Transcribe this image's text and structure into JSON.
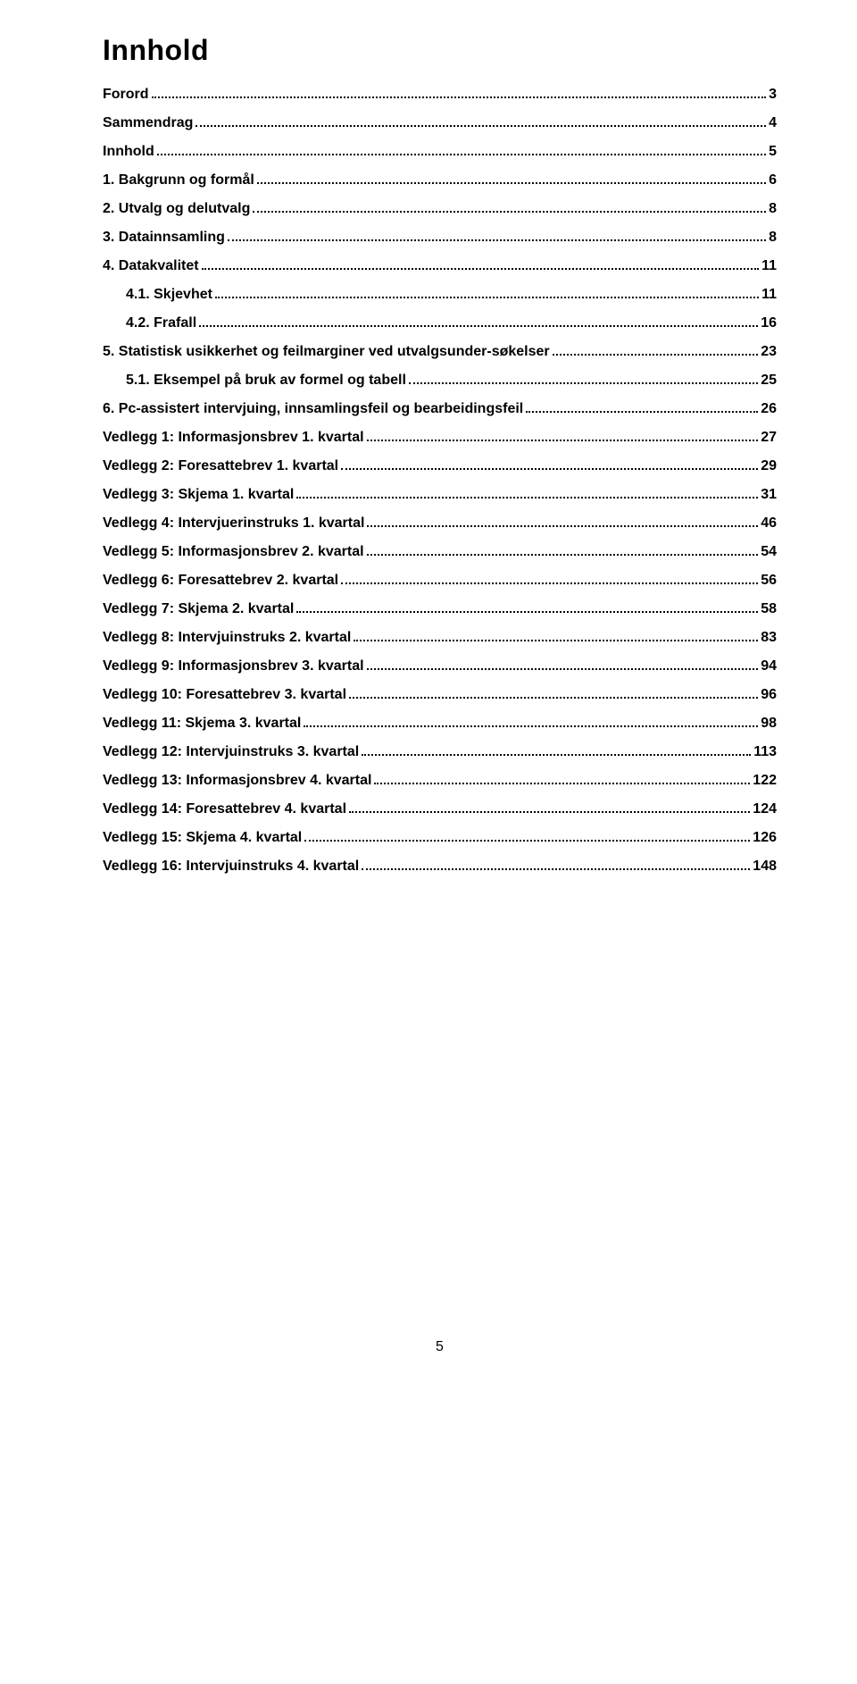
{
  "title": "Innhold",
  "page_number": "5",
  "toc": [
    {
      "label": "Forord",
      "page": "3",
      "sub": false
    },
    {
      "label": "Sammendrag",
      "page": "4",
      "sub": false
    },
    {
      "label": "Innhold",
      "page": "5",
      "sub": false
    },
    {
      "label": "1.  Bakgrunn og formål",
      "page": "6",
      "sub": false
    },
    {
      "label": "2.  Utvalg og delutvalg",
      "page": "8",
      "sub": false
    },
    {
      "label": "3.  Datainnsamling",
      "page": "8",
      "sub": false
    },
    {
      "label": "4.  Datakvalitet",
      "page": "11",
      "sub": false
    },
    {
      "label": "4.1.  Skjevhet",
      "page": "11",
      "sub": true
    },
    {
      "label": "4.2.  Frafall",
      "page": "16",
      "sub": true
    },
    {
      "label": "5.  Statistisk usikkerhet og feilmarginer ved utvalgsunder-søkelser",
      "page": "23",
      "sub": false
    },
    {
      "label": "5.1.  Eksempel på bruk av formel og tabell",
      "page": "25",
      "sub": true
    },
    {
      "label": "6.  Pc-assistert intervjuing, innsamlingsfeil og bearbeidingsfeil",
      "page": "26",
      "sub": false
    },
    {
      "label": "Vedlegg 1: Informasjonsbrev 1. kvartal",
      "page": "27",
      "sub": false
    },
    {
      "label": "Vedlegg 2: Foresattebrev 1. kvartal",
      "page": "29",
      "sub": false
    },
    {
      "label": "Vedlegg 3: Skjema 1. kvartal",
      "page": "31",
      "sub": false
    },
    {
      "label": "Vedlegg 4: Intervjuerinstruks 1. kvartal",
      "page": "46",
      "sub": false
    },
    {
      "label": "Vedlegg 5: Informasjonsbrev 2. kvartal",
      "page": "54",
      "sub": false
    },
    {
      "label": "Vedlegg 6: Foresattebrev 2. kvartal",
      "page": "56",
      "sub": false
    },
    {
      "label": "Vedlegg 7: Skjema 2. kvartal",
      "page": "58",
      "sub": false
    },
    {
      "label": "Vedlegg 8: Intervjuinstruks 2. kvartal",
      "page": "83",
      "sub": false
    },
    {
      "label": "Vedlegg 9: Informasjonsbrev 3. kvartal",
      "page": "94",
      "sub": false
    },
    {
      "label": "Vedlegg 10: Foresattebrev 3. kvartal",
      "page": "96",
      "sub": false
    },
    {
      "label": "Vedlegg 11: Skjema 3. kvartal",
      "page": "98",
      "sub": false
    },
    {
      "label": "Vedlegg 12: Intervjuinstruks 3. kvartal",
      "page": "113",
      "sub": false
    },
    {
      "label": "Vedlegg 13: Informasjonsbrev 4. kvartal",
      "page": "122",
      "sub": false
    },
    {
      "label": "Vedlegg 14: Foresattebrev 4. kvartal",
      "page": "124",
      "sub": false
    },
    {
      "label": "Vedlegg 15: Skjema 4. kvartal",
      "page": "126",
      "sub": false
    },
    {
      "label": "Vedlegg 16: Intervjuinstruks 4. kvartal",
      "page": "148",
      "sub": false
    }
  ]
}
